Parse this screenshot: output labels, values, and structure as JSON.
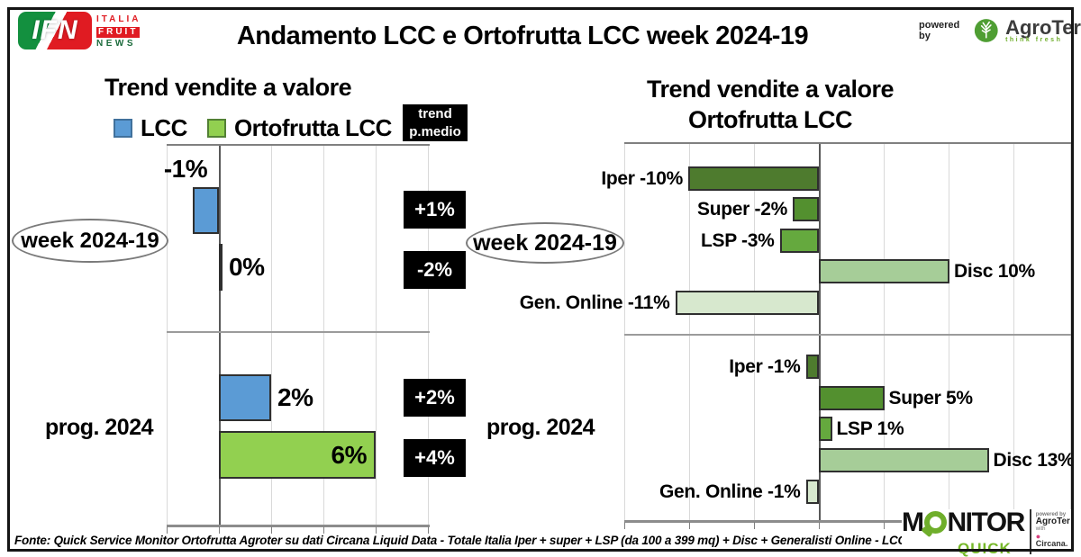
{
  "page": {
    "title": "Andamento LCC e Ortofrutta LCC week 2024-19",
    "footer": "Fonte: Quick Service Monitor Ortofrutta Agroter su dati Circana Liquid Data - Totale Italia Iper + super + LSP (da 100 a 399 mq) + Disc + Generalisti Online - LCC"
  },
  "branding": {
    "ifn": {
      "initials": "IFN",
      "line1": "ITALIA",
      "line2": "FRUIT",
      "line3": "NEWS"
    },
    "agroter": {
      "powered_by": "powered by",
      "name": "AgroTer",
      "tagline": "think fresh"
    },
    "monitor": {
      "word_m": "M",
      "word_rest": "NITOR",
      "sub": "QUICK",
      "powered_by": "powered by",
      "partner1": "AgroTer",
      "with_word": "with",
      "partner2": "Circana."
    }
  },
  "colors": {
    "lcc_blue": "#5b9bd5",
    "ortofrutta_green": "#92d050",
    "iper_green": "#4e7b2e",
    "super_green": "#53902f",
    "lsp_green": "#65a93e",
    "disc_green": "#a6cd98",
    "gen_online_green": "#d7e8ce",
    "trend_box": "#000000"
  },
  "chart_data": [
    {
      "type": "bar",
      "orientation": "horizontal",
      "title": "Trend vendite a valore",
      "trend_header": "trend p.medio",
      "xlim": [
        -2,
        8
      ],
      "gridline_step_pct": 2,
      "grid": true,
      "legend": [
        {
          "name": "LCC",
          "color": "#5b9bd5"
        },
        {
          "name": "Ortofrutta LCC",
          "color": "#92d050"
        }
      ],
      "groups": [
        {
          "label": "week 2024-19",
          "bars": [
            {
              "series": "LCC",
              "value": -1,
              "label": "-1%",
              "label_pos": "above"
            },
            {
              "series": "Ortofrutta LCC",
              "value": 0,
              "label": "0%",
              "label_pos": "right"
            }
          ],
          "trend": [
            "+1%",
            "-2%"
          ]
        },
        {
          "label": "prog. 2024",
          "bars": [
            {
              "series": "LCC",
              "value": 2,
              "label": "2%",
              "label_pos": "right"
            },
            {
              "series": "Ortofrutta LCC",
              "value": 6,
              "label": "6%",
              "label_pos": "inside"
            }
          ],
          "trend": [
            "+2%",
            "+4%"
          ]
        }
      ]
    },
    {
      "type": "bar",
      "orientation": "horizontal",
      "title_line1": "Trend vendite a valore",
      "title_line2": "Ortofrutta LCC",
      "xlim": [
        -15,
        19
      ],
      "gridline_step_pct": 5,
      "grid": true,
      "groups": [
        {
          "label": "week 2024-19",
          "bars": [
            {
              "name": "Iper",
              "value": -10,
              "label": "Iper -10%",
              "color": "#4e7b2e"
            },
            {
              "name": "Super",
              "value": -2,
              "label": "Super -2%",
              "color": "#53902f"
            },
            {
              "name": "LSP",
              "value": -3,
              "label": "LSP -3%",
              "color": "#65a93e"
            },
            {
              "name": "Disc",
              "value": 10,
              "label": "Disc 10%",
              "color": "#a6cd98"
            },
            {
              "name": "Gen. Online",
              "value": -11,
              "label": "Gen. Online -11%",
              "color": "#d7e8ce"
            }
          ]
        },
        {
          "label": "prog. 2024",
          "bars": [
            {
              "name": "Iper",
              "value": -1,
              "label": "Iper -1%",
              "color": "#4e7b2e"
            },
            {
              "name": "Super",
              "value": 5,
              "label": "Super 5%",
              "color": "#53902f"
            },
            {
              "name": "LSP",
              "value": 1,
              "label": "LSP 1%",
              "color": "#65a93e"
            },
            {
              "name": "Disc",
              "value": 13,
              "label": "Disc 13%",
              "color": "#a6cd98"
            },
            {
              "name": "Gen. Online",
              "value": -1,
              "label": "Gen. Online -1%",
              "color": "#d7e8ce"
            }
          ]
        }
      ]
    }
  ]
}
